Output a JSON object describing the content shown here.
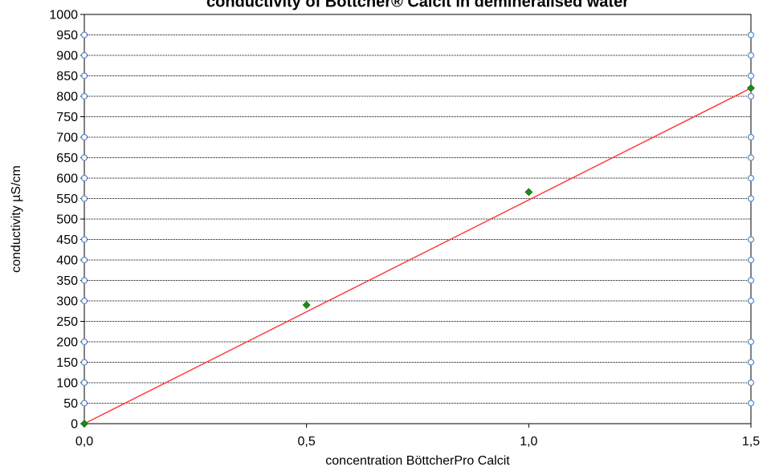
{
  "chart_data": {
    "type": "scatter",
    "title": "conductivity of Böttcher® Calcit in demineralised water",
    "xlabel": "concentration BöttcherPro Calcit",
    "ylabel": "conductivity µS/cm",
    "xlim": [
      0,
      1.5
    ],
    "ylim": [
      0,
      1000
    ],
    "x_ticks": [
      "0,0",
      "0,5",
      "1,0",
      "1,5"
    ],
    "y_ticks": [
      "0",
      "50",
      "100",
      "150",
      "200",
      "250",
      "300",
      "350",
      "400",
      "450",
      "500",
      "550",
      "600",
      "650",
      "700",
      "750",
      "800",
      "850",
      "900",
      "950",
      "1000"
    ],
    "grid": true,
    "series": [
      {
        "values_x": [
          0,
          0.5,
          1.0,
          1.5
        ],
        "values_y": [
          0,
          290,
          566,
          820
        ],
        "color": "#1a8a1a",
        "marker": "diamond"
      }
    ],
    "trendline": {
      "x": [
        0,
        1.5
      ],
      "y": [
        0,
        820
      ],
      "color": "#ff3b3b"
    },
    "edge_markers_y": [
      50,
      100,
      150,
      200,
      300,
      350,
      400,
      450,
      550,
      600,
      650,
      700,
      800,
      850,
      900,
      950
    ],
    "edge_marker_color": "#5b8ec9"
  }
}
